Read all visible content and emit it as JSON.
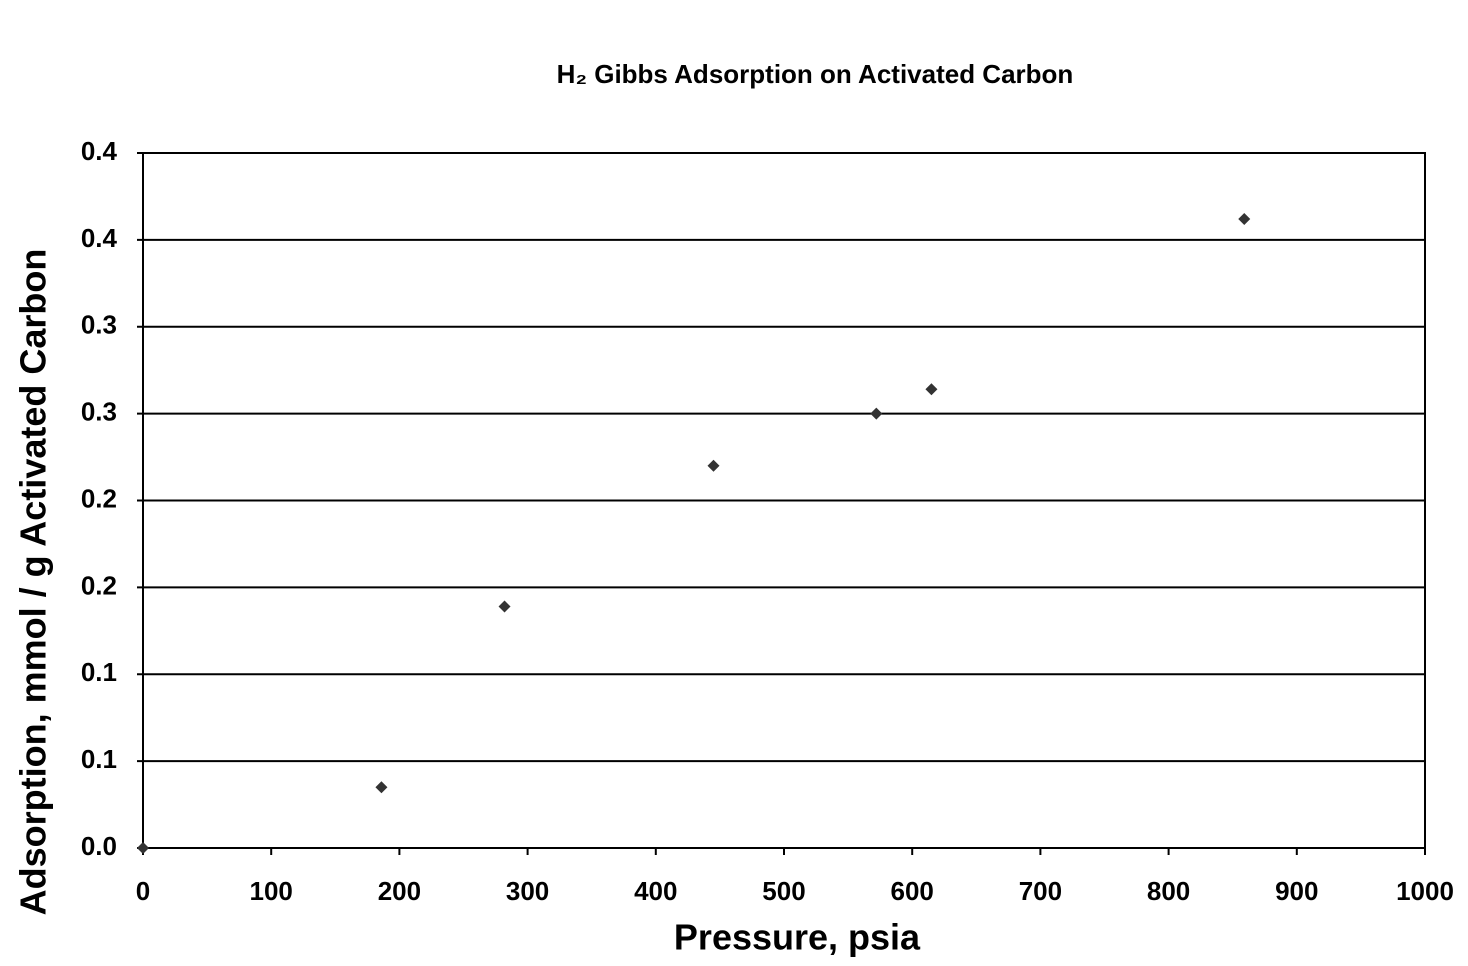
{
  "chart_data": {
    "type": "scatter",
    "title": "H₂ Gibbs Adsorption on Activated Carbon",
    "x_label": "Pressure, psia",
    "y_label": "Adsorption, mmol / g Activated Carbon",
    "x": [
      0,
      186,
      282,
      445,
      572,
      615,
      859
    ],
    "values": [
      0,
      0.035,
      0.139,
      0.22,
      0.25,
      0.264,
      0.362
    ],
    "color": "#333333",
    "xlim": [
      0,
      1000
    ],
    "xticks": [
      0,
      100,
      200,
      300,
      400,
      500,
      600,
      700,
      800,
      900,
      1000
    ],
    "ylim": [
      0,
      0.4
    ],
    "yticks": [
      {
        "value": 0,
        "label": "0.0"
      },
      {
        "value": 0.05,
        "label": "0.1"
      },
      0.1,
      {
        "value": 0.15,
        "label": "0.2"
      },
      {
        "value": 0.2,
        "label": "0.2"
      },
      {
        "value": 0.25,
        "label": "0.3"
      },
      {
        "value": 0.3,
        "label": "0.3"
      },
      {
        "value": 0.35,
        "label": "0.4"
      },
      0.4
    ],
    "grid": true
  }
}
